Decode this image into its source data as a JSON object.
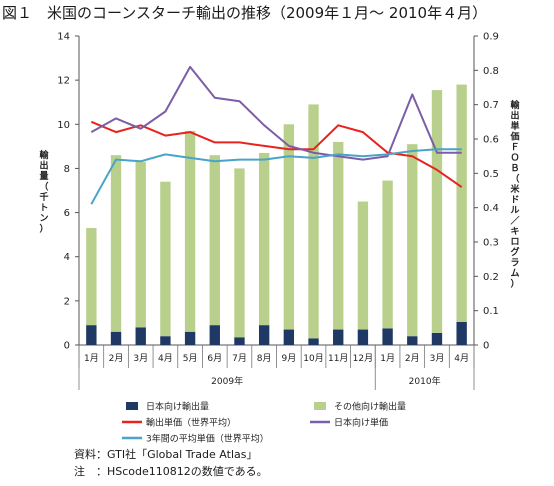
{
  "figure_title": "図１　米国のコーンスターチ輸出の推移（2009年１月～ 2010年４月）",
  "notes": {
    "source": "資料：GTI社「Global Trade Atlas」",
    "note": "注　：HScode110812の数値である。"
  },
  "chart_data": {
    "type": "bar",
    "title": "図１　米国のコーンスターチ輸出の推移（2009年１月～ 2010年４月）",
    "categories": [
      "1月",
      "2月",
      "3月",
      "4月",
      "5月",
      "6月",
      "7月",
      "8月",
      "9月",
      "10月",
      "11月",
      "12月",
      "1月",
      "2月",
      "3月",
      "4月"
    ],
    "year_groups": [
      {
        "label": "2009年",
        "count": 12
      },
      {
        "label": "2010年",
        "count": 4
      }
    ],
    "ylabel": "輸出量（千トン）",
    "y2label": "輸出単価ＦＯＢ（米ドル／キログラム）",
    "ylim": [
      0,
      14
    ],
    "y2lim": [
      0,
      0.9
    ],
    "yticks": [
      "0",
      "2",
      "4",
      "6",
      "8",
      "10",
      "12",
      "14"
    ],
    "y2ticks": [
      "0",
      "0.1",
      "0.2",
      "0.3",
      "0.4",
      "0.5",
      "0.6",
      "0.7",
      "0.8",
      "0.9"
    ],
    "stacked": true,
    "series": [
      {
        "name": "日本向け輸出量",
        "kind": "bar",
        "axis": "left",
        "color": "#1f3864",
        "values": [
          0.9,
          0.6,
          0.8,
          0.4,
          0.6,
          0.9,
          0.35,
          0.9,
          0.7,
          0.3,
          0.7,
          0.7,
          0.75,
          0.4,
          0.55,
          1.05
        ]
      },
      {
        "name": "その他向け輸出量",
        "kind": "bar",
        "axis": "left",
        "color": "#b9d08c",
        "values": [
          4.4,
          8.0,
          7.5,
          7.0,
          9.1,
          7.7,
          7.65,
          7.8,
          9.3,
          10.6,
          8.5,
          5.8,
          6.7,
          8.7,
          11.0,
          10.75
        ]
      },
      {
        "name": "輸出単価（世界平均）",
        "kind": "line",
        "axis": "right",
        "color": "#e8231d",
        "values": [
          0.65,
          0.62,
          0.64,
          0.61,
          0.62,
          0.59,
          0.59,
          0.58,
          0.57,
          0.57,
          0.64,
          0.62,
          0.56,
          0.55,
          0.51,
          0.46
        ]
      },
      {
        "name": "日本向け単価",
        "kind": "line",
        "axis": "right",
        "color": "#7b5ea7",
        "values": [
          0.62,
          0.66,
          0.63,
          0.68,
          0.81,
          0.72,
          0.71,
          0.64,
          0.58,
          0.56,
          0.55,
          0.54,
          0.55,
          0.73,
          0.56,
          0.56
        ]
      },
      {
        "name": "3年間の平均単価（世界平均）",
        "kind": "line",
        "axis": "right",
        "color": "#4aa3c8",
        "values": [
          0.41,
          0.54,
          0.535,
          0.555,
          0.545,
          0.535,
          0.54,
          0.54,
          0.55,
          0.545,
          0.555,
          0.55,
          0.555,
          0.565,
          0.57,
          0.57
        ]
      }
    ],
    "legend": "bottom",
    "grid": false
  }
}
